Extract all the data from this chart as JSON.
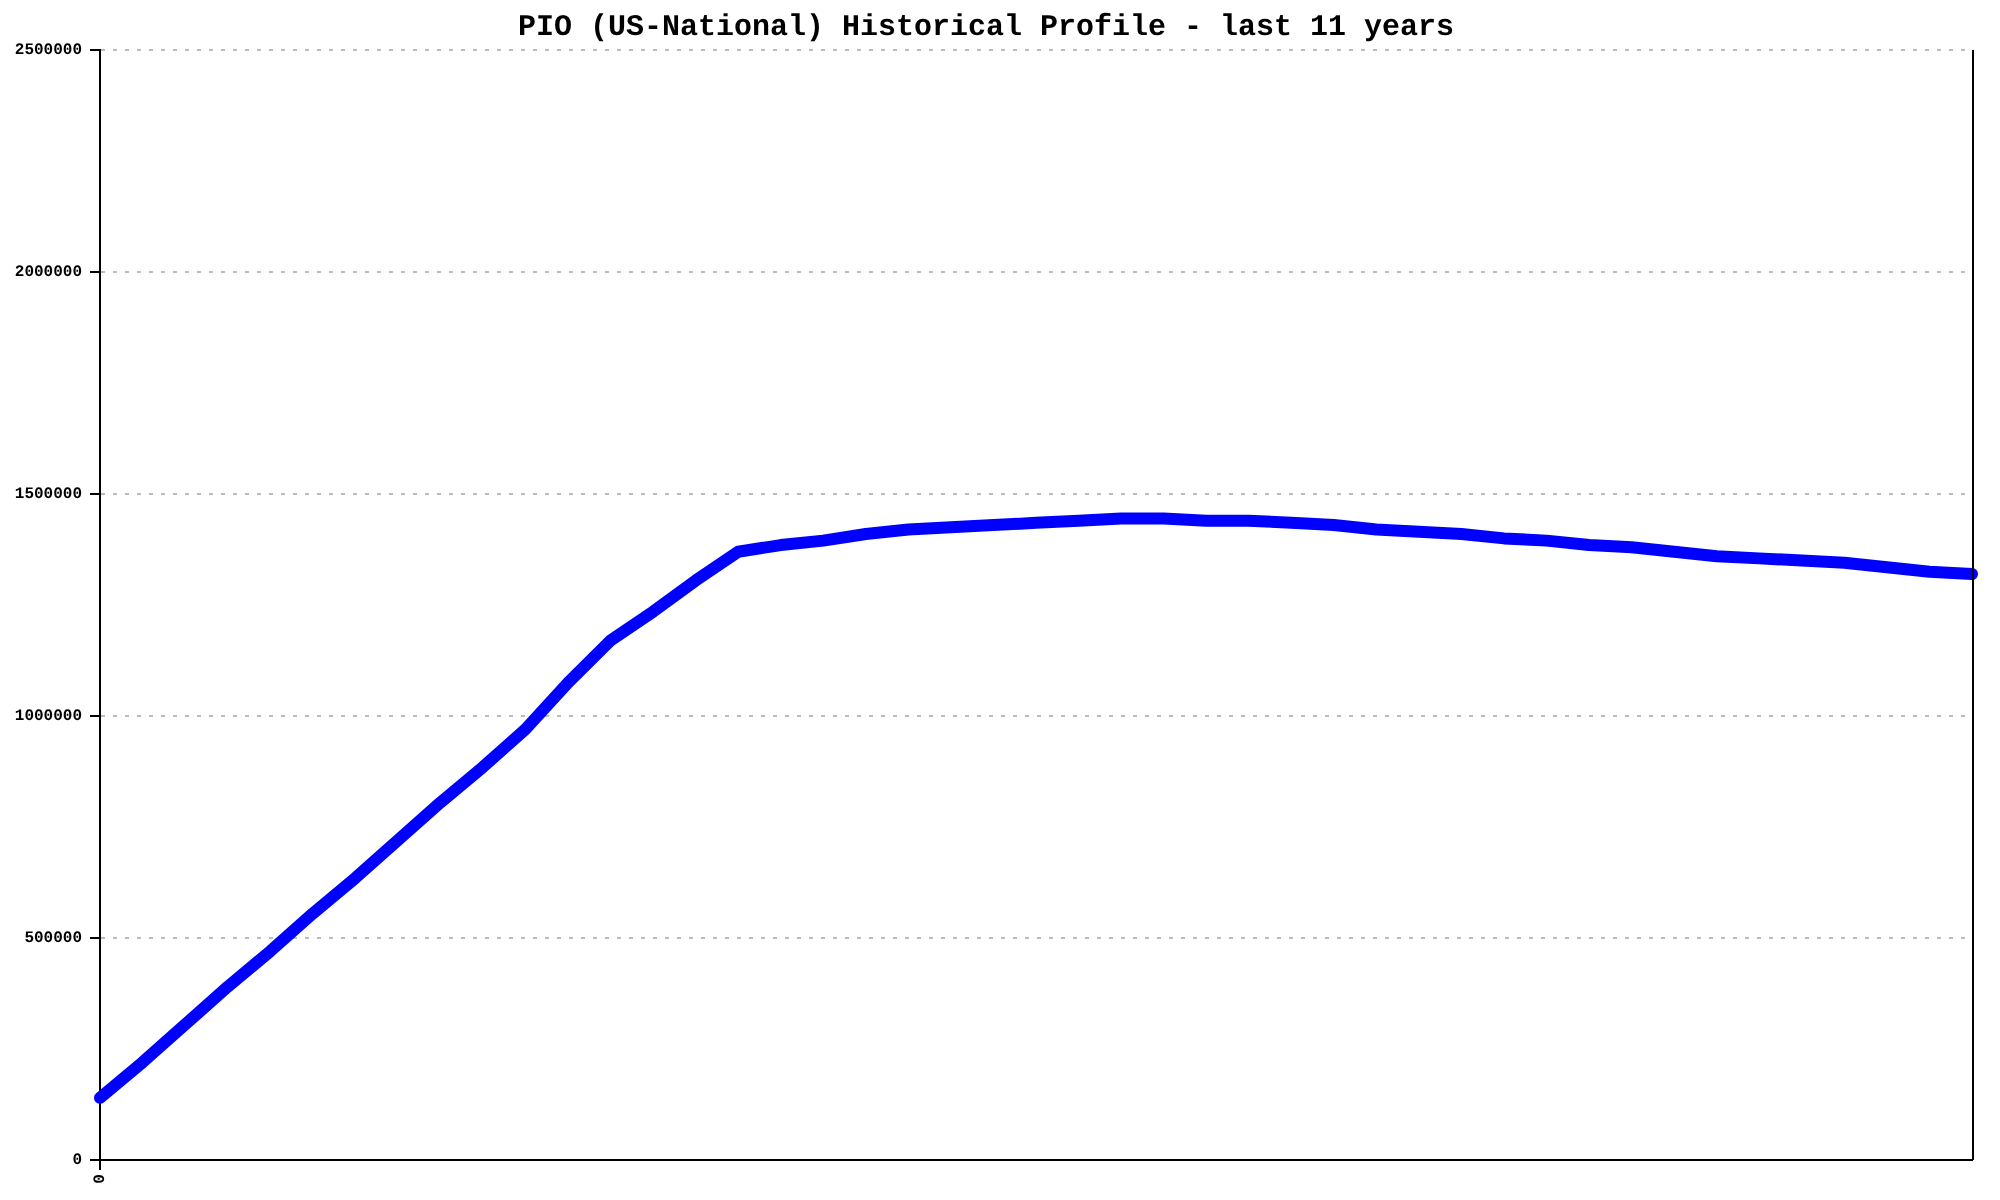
{
  "chart_data": {
    "type": "line",
    "title": "PIO (US-National) Historical Profile - last 11 years",
    "categories": [
      "0",
      null,
      null,
      null,
      null,
      null,
      null,
      null,
      null,
      null,
      null,
      null,
      null,
      null,
      null,
      null,
      null,
      null,
      null,
      null,
      null,
      null,
      null,
      null,
      null,
      null,
      null,
      null,
      null,
      null,
      null,
      null,
      null,
      null,
      null,
      null,
      null,
      null,
      null,
      null,
      null,
      null,
      null,
      null,
      null
    ],
    "series": [
      {
        "color": "#0000ff",
        "values": [
          140000,
          220000,
          305000,
          390000,
          470000,
          555000,
          635000,
          720000,
          805000,
          885000,
          970000,
          1075000,
          1170000,
          1235000,
          1305000,
          1370000,
          1385000,
          1395000,
          1410000,
          1420000,
          1425000,
          1430000,
          1435000,
          1440000,
          1445000,
          1445000,
          1440000,
          1440000,
          1435000,
          1430000,
          1420000,
          1415000,
          1410000,
          1400000,
          1395000,
          1385000,
          1380000,
          1370000,
          1360000,
          1355000,
          1350000,
          1345000,
          1335000,
          1325000,
          1320000
        ]
      }
    ],
    "ylim": [
      0,
      2500000
    ],
    "yticks": [
      0,
      500000,
      1000000,
      1500000,
      2000000,
      2500000
    ],
    "grid": "y",
    "marker": "none",
    "line_style": "solid"
  }
}
